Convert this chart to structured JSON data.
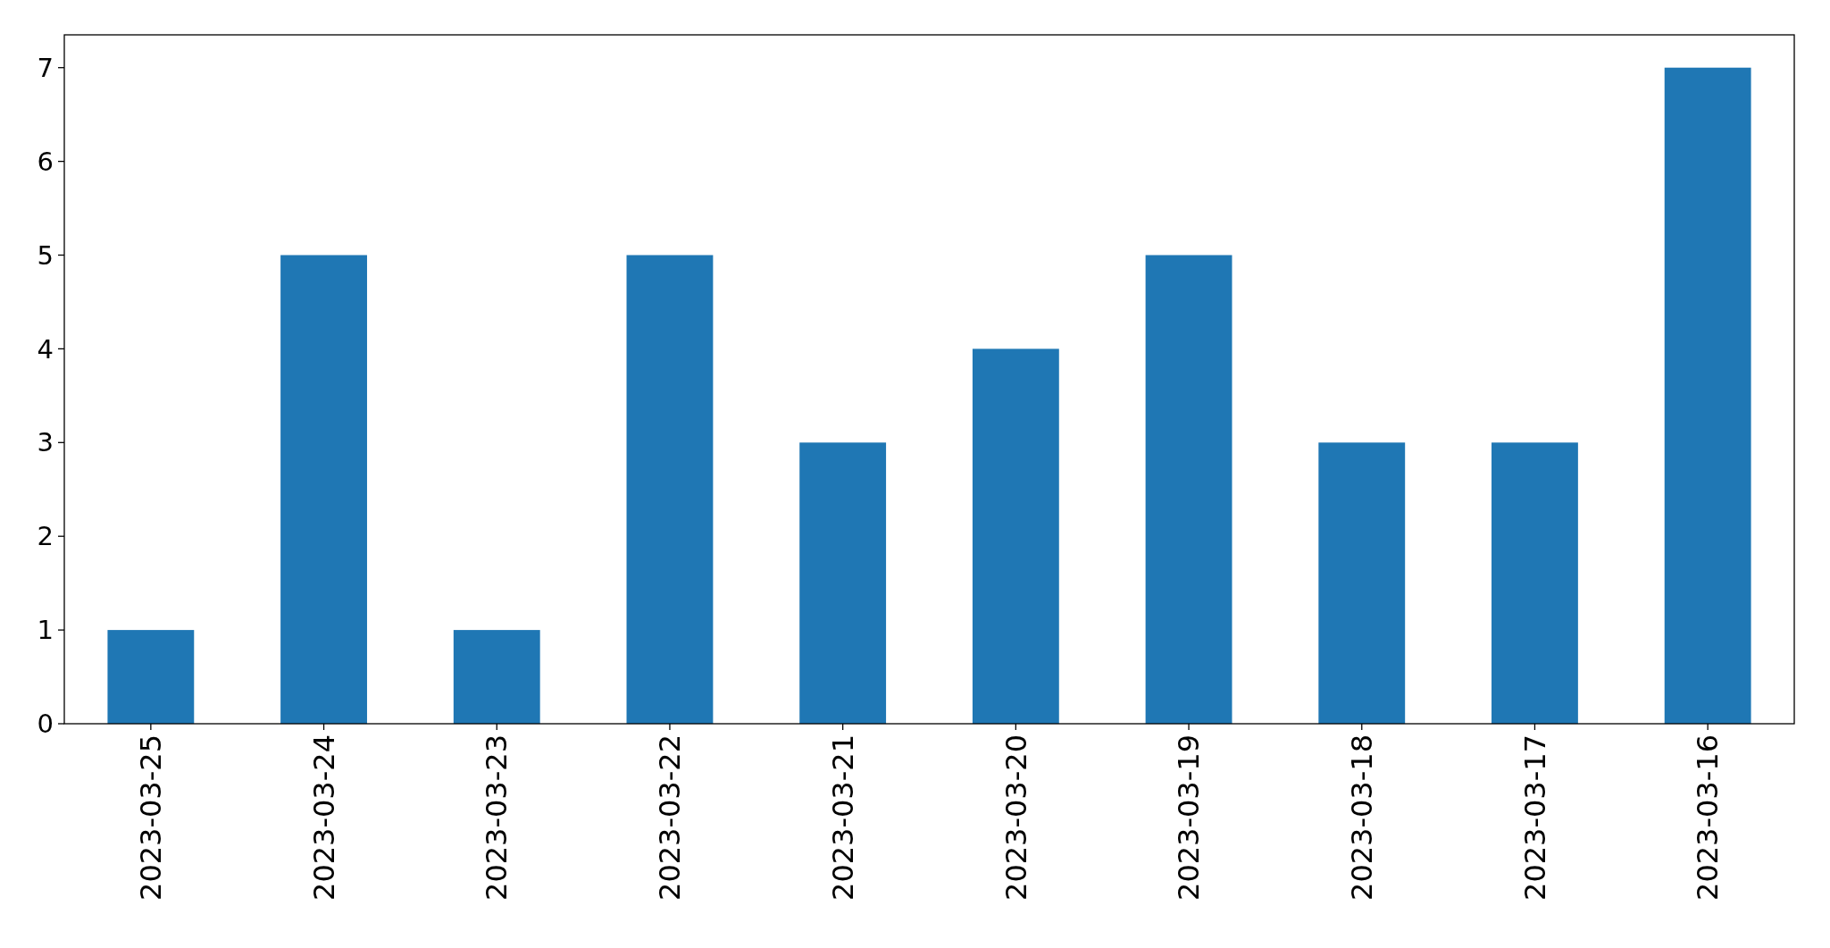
{
  "chart_data": {
    "type": "bar",
    "categories": [
      "2023-03-25",
      "2023-03-24",
      "2023-03-23",
      "2023-03-22",
      "2023-03-21",
      "2023-03-20",
      "2023-03-19",
      "2023-03-18",
      "2023-03-17",
      "2023-03-16"
    ],
    "values": [
      1,
      5,
      1,
      5,
      3,
      4,
      5,
      3,
      3,
      7
    ],
    "color": "#1f77b4",
    "ylim": [
      0,
      7.35
    ],
    "yticks": [
      0,
      1,
      2,
      3,
      4,
      5,
      6,
      7
    ],
    "grid": false
  }
}
